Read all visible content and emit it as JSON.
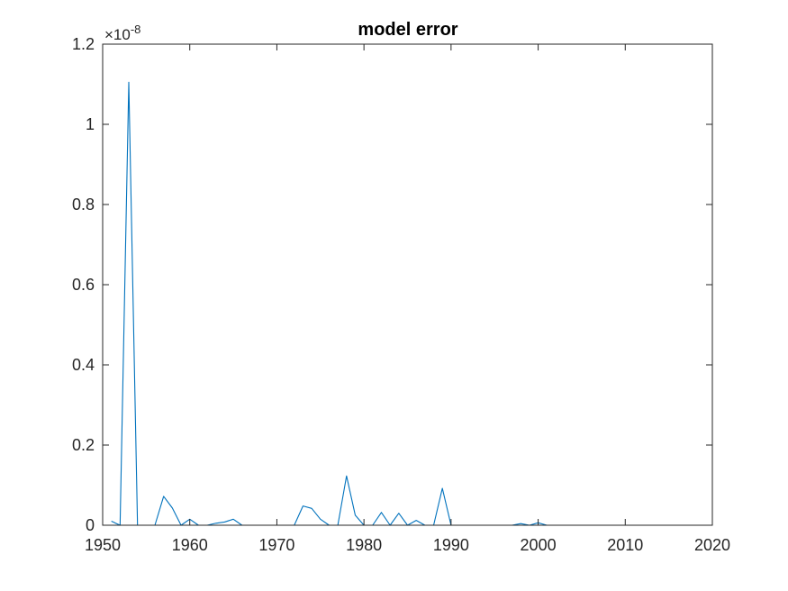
{
  "chart_data": {
    "type": "line",
    "title": "model error",
    "xlabel": "",
    "ylabel": "",
    "xlim": [
      1950,
      2020
    ],
    "ylim": [
      0,
      1.2
    ],
    "y_exponent_label": "×10",
    "y_exponent_power": "-8",
    "grid": false,
    "x_ticks": [
      1950,
      1960,
      1970,
      1980,
      1990,
      2000,
      2010,
      2020
    ],
    "y_ticks": [
      0,
      0.2,
      0.4,
      0.6,
      0.8,
      1,
      1.2
    ],
    "x_tick_labels": [
      "1950",
      "1960",
      "1970",
      "1980",
      "1990",
      "2000",
      "2010",
      "2020"
    ],
    "y_tick_labels": [
      "0",
      "0.2",
      "0.4",
      "0.6",
      "0.8",
      "1",
      "1.2"
    ],
    "series": [
      {
        "color": "#0072BD",
        "x": [
          1951,
          1952,
          1953,
          1954,
          1955,
          1956,
          1957,
          1958,
          1959,
          1960,
          1961,
          1962,
          1963,
          1964,
          1965,
          1966,
          1967,
          1968,
          1969,
          1970,
          1971,
          1972,
          1973,
          1974,
          1975,
          1976,
          1977,
          1978,
          1979,
          1980,
          1981,
          1982,
          1983,
          1984,
          1985,
          1986,
          1987,
          1988,
          1989,
          1990,
          1991,
          1992,
          1993,
          1994,
          1995,
          1996,
          1997,
          1998,
          1999,
          2000,
          2001,
          2002,
          2003,
          2004,
          2005,
          2006,
          2007,
          2008,
          2009,
          2010,
          2011
        ],
        "y": [
          0.01,
          0,
          1.105,
          0,
          0,
          0,
          0.072,
          0.043,
          0,
          0.015,
          0,
          0,
          0.005,
          0.008,
          0.015,
          0,
          0,
          0,
          0,
          0,
          0,
          0,
          0.048,
          0.042,
          0.015,
          0,
          0,
          0.123,
          0.025,
          0,
          0,
          0.032,
          0,
          0.03,
          0,
          0.012,
          0,
          0,
          0.092,
          0,
          0,
          0,
          0,
          0,
          0,
          0,
          0,
          0.004,
          0,
          0.006,
          0,
          0,
          0,
          0,
          0,
          0,
          0,
          0,
          0,
          0,
          0
        ]
      }
    ]
  }
}
